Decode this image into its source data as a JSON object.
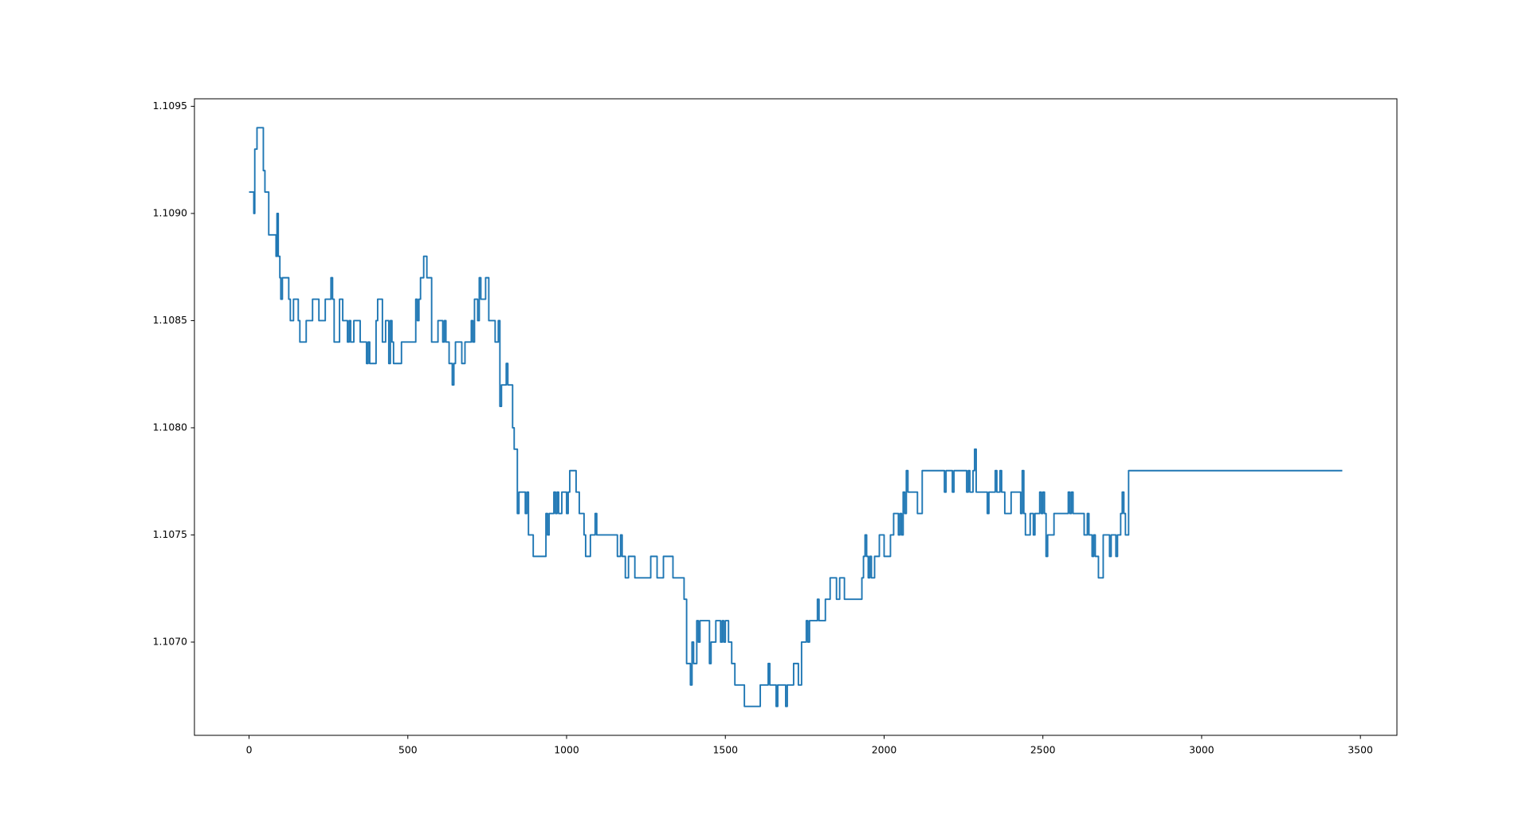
{
  "chart_data": {
    "type": "line",
    "drawstyle": "steps-post",
    "color": "#1f77b4",
    "grid": false,
    "xlim": [
      -172,
      3615
    ],
    "xticks": [
      0,
      500,
      1000,
      1500,
      2000,
      2500,
      3000,
      3500
    ],
    "ylim": [
      1.106565,
      1.109535
    ],
    "yticks": [
      {
        "value": 1.107,
        "label": "1.1070"
      },
      1.1075,
      {
        "value": 1.108,
        "label": "1.1080"
      },
      1.1085,
      {
        "value": 1.109,
        "label": "1.1090"
      },
      1.1095
    ],
    "x": [
      0,
      15,
      18,
      25,
      45,
      50,
      62,
      85,
      88,
      92,
      97,
      100,
      105,
      125,
      130,
      140,
      155,
      160,
      180,
      200,
      220,
      240,
      258,
      263,
      268,
      285,
      295,
      310,
      315,
      320,
      330,
      350,
      370,
      375,
      380,
      400,
      405,
      420,
      430,
      440,
      445,
      450,
      455,
      480,
      525,
      530,
      535,
      540,
      550,
      560,
      575,
      595,
      610,
      615,
      620,
      630,
      640,
      645,
      650,
      670,
      680,
      700,
      705,
      710,
      720,
      725,
      730,
      745,
      755,
      775,
      785,
      790,
      795,
      810,
      815,
      830,
      835,
      845,
      850,
      870,
      875,
      880,
      895,
      935,
      940,
      945,
      960,
      965,
      970,
      975,
      985,
      1000,
      1005,
      1010,
      1030,
      1040,
      1055,
      1060,
      1075,
      1090,
      1095,
      1160,
      1170,
      1175,
      1185,
      1195,
      1215,
      1265,
      1285,
      1305,
      1335,
      1370,
      1378,
      1390,
      1395,
      1400,
      1410,
      1415,
      1420,
      1450,
      1455,
      1470,
      1485,
      1490,
      1495,
      1500,
      1510,
      1520,
      1530,
      1560,
      1610,
      1635,
      1640,
      1660,
      1665,
      1690,
      1695,
      1715,
      1730,
      1740,
      1755,
      1760,
      1765,
      1790,
      1795,
      1815,
      1830,
      1850,
      1860,
      1875,
      1930,
      1935,
      1940,
      1945,
      1950,
      1955,
      1960,
      1970,
      1985,
      2000,
      2020,
      2030,
      2045,
      2050,
      2055,
      2060,
      2065,
      2070,
      2075,
      2105,
      2120,
      2190,
      2195,
      2215,
      2220,
      2260,
      2265,
      2270,
      2280,
      2285,
      2290,
      2325,
      2330,
      2350,
      2355,
      2365,
      2370,
      2380,
      2400,
      2430,
      2435,
      2440,
      2445,
      2460,
      2470,
      2475,
      2490,
      2495,
      2500,
      2505,
      2510,
      2515,
      2535,
      2580,
      2585,
      2590,
      2595,
      2630,
      2640,
      2645,
      2655,
      2660,
      2665,
      2675,
      2690,
      2710,
      2715,
      2730,
      2735,
      2745,
      2750,
      2755,
      2760,
      2770,
      3443
    ],
    "values": [
      1.1091,
      1.109,
      1.1093,
      1.1094,
      1.1092,
      1.1091,
      1.1089,
      1.1088,
      1.109,
      1.1088,
      1.1087,
      1.1086,
      1.1087,
      1.1086,
      1.1085,
      1.1086,
      1.1085,
      1.1084,
      1.1085,
      1.1086,
      1.1085,
      1.1086,
      1.1087,
      1.1086,
      1.1084,
      1.1086,
      1.1085,
      1.1084,
      1.1085,
      1.1084,
      1.1085,
      1.1084,
      1.1083,
      1.1084,
      1.1083,
      1.1085,
      1.1086,
      1.1084,
      1.1085,
      1.1083,
      1.1085,
      1.1084,
      1.1083,
      1.1084,
      1.1086,
      1.1085,
      1.1086,
      1.1087,
      1.1088,
      1.1087,
      1.1084,
      1.1085,
      1.1084,
      1.1085,
      1.1084,
      1.1083,
      1.1082,
      1.1083,
      1.1084,
      1.1083,
      1.1084,
      1.1085,
      1.1084,
      1.1086,
      1.1085,
      1.1087,
      1.1086,
      1.1087,
      1.1085,
      1.1084,
      1.1085,
      1.1081,
      1.1082,
      1.1083,
      1.1082,
      1.108,
      1.1079,
      1.1076,
      1.1077,
      1.1076,
      1.1077,
      1.1075,
      1.1074,
      1.1076,
      1.1075,
      1.1076,
      1.1077,
      1.1076,
      1.1077,
      1.1076,
      1.1077,
      1.1076,
      1.1077,
      1.1078,
      1.1077,
      1.1076,
      1.1075,
      1.1074,
      1.1075,
      1.1076,
      1.1075,
      1.1074,
      1.1075,
      1.1074,
      1.1073,
      1.1074,
      1.1073,
      1.1074,
      1.1073,
      1.1074,
      1.1073,
      1.1072,
      1.1069,
      1.1068,
      1.107,
      1.1069,
      1.1071,
      1.107,
      1.1071,
      1.1069,
      1.107,
      1.1071,
      1.107,
      1.1071,
      1.107,
      1.1071,
      1.107,
      1.1069,
      1.1068,
      1.1067,
      1.1068,
      1.1069,
      1.1068,
      1.1067,
      1.1068,
      1.1067,
      1.1068,
      1.1069,
      1.1068,
      1.107,
      1.1071,
      1.107,
      1.1071,
      1.1072,
      1.1071,
      1.1072,
      1.1073,
      1.1072,
      1.1073,
      1.1072,
      1.1073,
      1.1074,
      1.1075,
      1.1074,
      1.1073,
      1.1074,
      1.1073,
      1.1074,
      1.1075,
      1.1074,
      1.1075,
      1.1076,
      1.1075,
      1.1076,
      1.1075,
      1.1077,
      1.1076,
      1.1078,
      1.1077,
      1.1076,
      1.1078,
      1.1077,
      1.1078,
      1.1077,
      1.1078,
      1.1077,
      1.1078,
      1.1077,
      1.1078,
      1.1079,
      1.1077,
      1.1076,
      1.1077,
      1.1078,
      1.1077,
      1.1078,
      1.1077,
      1.1076,
      1.1077,
      1.1076,
      1.1078,
      1.1076,
      1.1075,
      1.1076,
      1.1075,
      1.1076,
      1.1077,
      1.1076,
      1.1077,
      1.1076,
      1.1074,
      1.1075,
      1.1076,
      1.1077,
      1.1076,
      1.1077,
      1.1076,
      1.1075,
      1.1076,
      1.1075,
      1.1074,
      1.1075,
      1.1074,
      1.1073,
      1.1075,
      1.1074,
      1.1075,
      1.1074,
      1.1075,
      1.1076,
      1.1077,
      1.1076,
      1.1075,
      1.1078,
      1.1078
    ]
  }
}
